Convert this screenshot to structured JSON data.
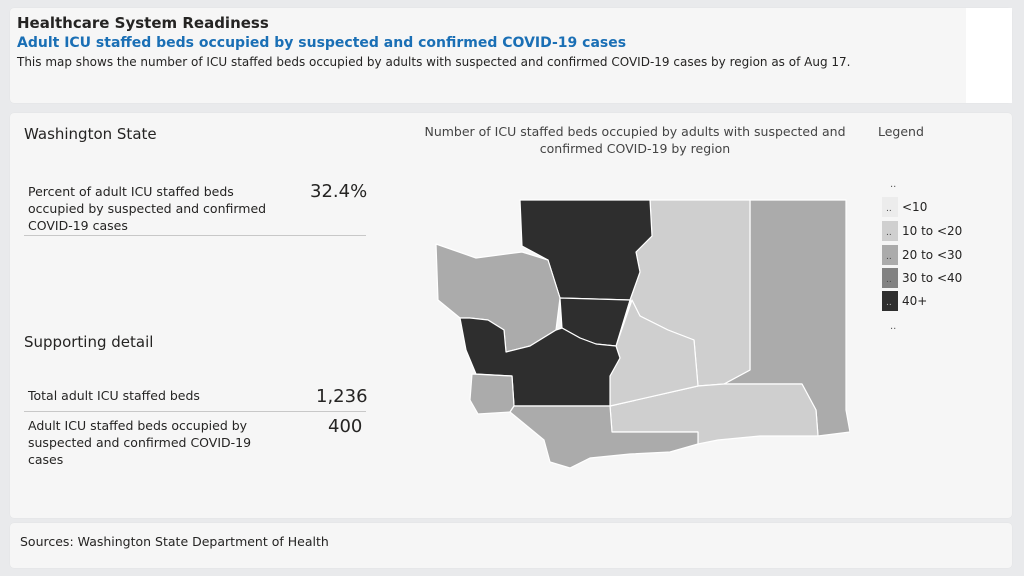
{
  "header": {
    "section_label": "Healthcare System Readiness",
    "headline": "Adult ICU staffed beds occupied by suspected and confirmed COVID-19 cases",
    "description": "This map shows the number of ICU staffed beds occupied by adults with suspected and confirmed COVID-19 cases by region as of Aug 17."
  },
  "summary": {
    "title": "Washington State",
    "percent_label": "Percent of adult ICU staffed beds occupied by suspected and confirmed COVID-19 cases",
    "percent_value": "32.4%"
  },
  "detail": {
    "title": "Supporting detail",
    "rows": [
      {
        "label": "Total adult ICU staffed beds",
        "value": "1,236"
      },
      {
        "label": "Adult ICU staffed beds occupied by suspected and confirmed COVID-19 cases",
        "value": "400"
      }
    ]
  },
  "map": {
    "title": "Number of ICU staffed beds occupied by adults with suspected and confirmed COVID-19 by region",
    "regions": [
      {
        "id": "north",
        "category": "40+"
      },
      {
        "id": "central-puget",
        "category": "40+"
      },
      {
        "id": "southwest",
        "category": "40+"
      },
      {
        "id": "olympic",
        "category": "20 to <30"
      },
      {
        "id": "north-central",
        "category": "10 to <20"
      },
      {
        "id": "south-central",
        "category": "10 to <20"
      },
      {
        "id": "east",
        "category": "20 to <30"
      },
      {
        "id": "southeast",
        "category": "10 to <20"
      },
      {
        "id": "lower-columbia",
        "category": "20 to <30"
      },
      {
        "id": "coast",
        "category": "20 to <30"
      }
    ]
  },
  "legend": {
    "title": "Legend",
    "top_marker": "..",
    "bottom_marker": "..",
    "items": [
      {
        "label": "<10",
        "color": "#ececec",
        "marker": ".."
      },
      {
        "label": "10 to <20",
        "color": "#cfcfcf",
        "marker": ".."
      },
      {
        "label": "20 to <30",
        "color": "#ababab",
        "marker": ".."
      },
      {
        "label": "30 to <40",
        "color": "#828282",
        "marker": ".."
      },
      {
        "label": "40+",
        "color": "#2e2e2e",
        "marker": ".."
      }
    ]
  },
  "footer": {
    "sources": "Sources: Washington State Department of Health"
  }
}
